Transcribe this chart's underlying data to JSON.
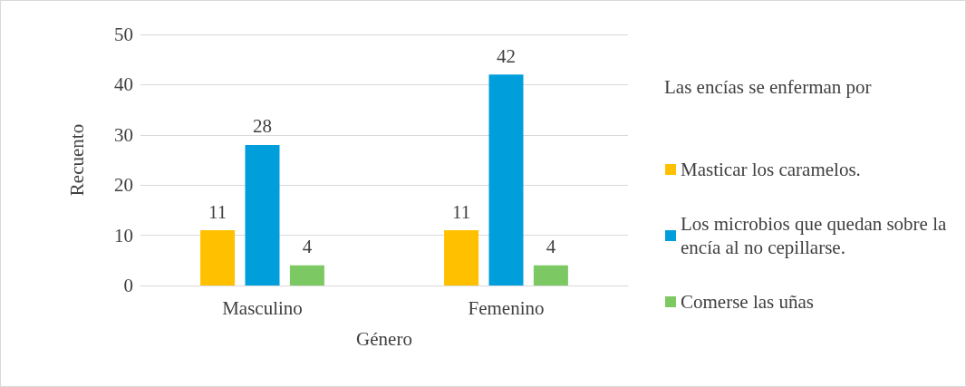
{
  "chart_data": {
    "type": "bar",
    "xlabel": "Género",
    "ylabel": "Recuento",
    "legend_title": "Las encías se enferman por",
    "categories": [
      "Masculino",
      "Femenino"
    ],
    "series": [
      {
        "name": "Masticar los caramelos.",
        "color": "#ffc000",
        "values": [
          11,
          11
        ]
      },
      {
        "name": "Los microbios que quedan sobre la encía al no cepillarse.",
        "color": "#009fdb",
        "values": [
          28,
          42
        ]
      },
      {
        "name": "Comerse las uñas",
        "color": "#7cc964",
        "values": [
          4,
          4
        ]
      }
    ],
    "ylim": [
      0,
      50
    ],
    "yticks": [
      0,
      10,
      20,
      30,
      40,
      50
    ],
    "grid": "y",
    "legend": "right",
    "data_labels": true
  }
}
